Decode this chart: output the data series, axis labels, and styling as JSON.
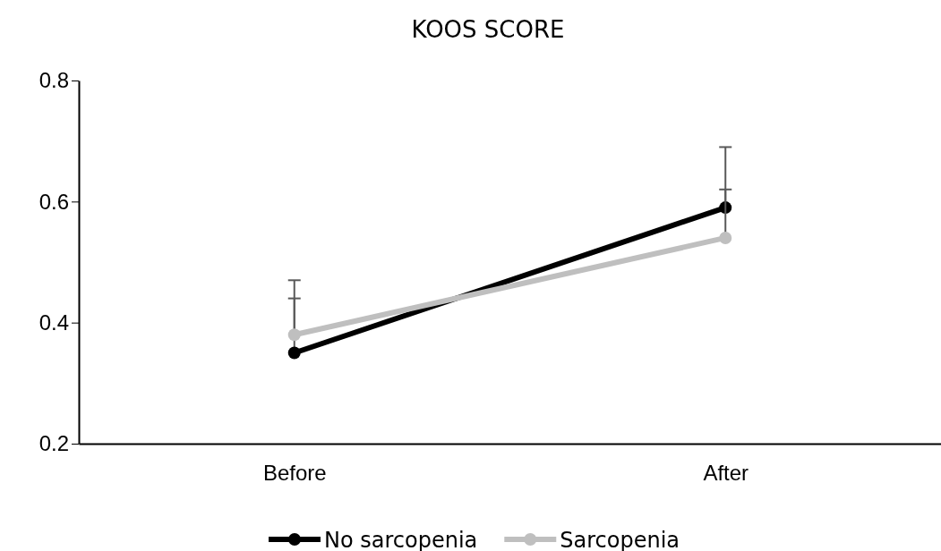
{
  "chart_data": {
    "type": "line",
    "title": "KOOS SCORE",
    "categories": [
      "Before",
      "After"
    ],
    "series": [
      {
        "name": "No sarcopenia",
        "color": "#000000",
        "values": [
          0.35,
          0.59
        ],
        "errors": [
          [
            0.35,
            0.47
          ],
          [
            0.59,
            0.69
          ]
        ]
      },
      {
        "name": "Sarcopenia",
        "color": "#bfbfbf",
        "values": [
          0.38,
          0.54
        ],
        "errors": [
          [
            0.38,
            0.44
          ],
          [
            0.54,
            0.62
          ]
        ]
      }
    ],
    "ylim": [
      0.2,
      0.8
    ],
    "yticks": [
      0.2,
      0.4,
      0.6,
      0.8
    ],
    "grid": false,
    "legend": "bottom",
    "marker": "circle",
    "line_style": "solid"
  }
}
